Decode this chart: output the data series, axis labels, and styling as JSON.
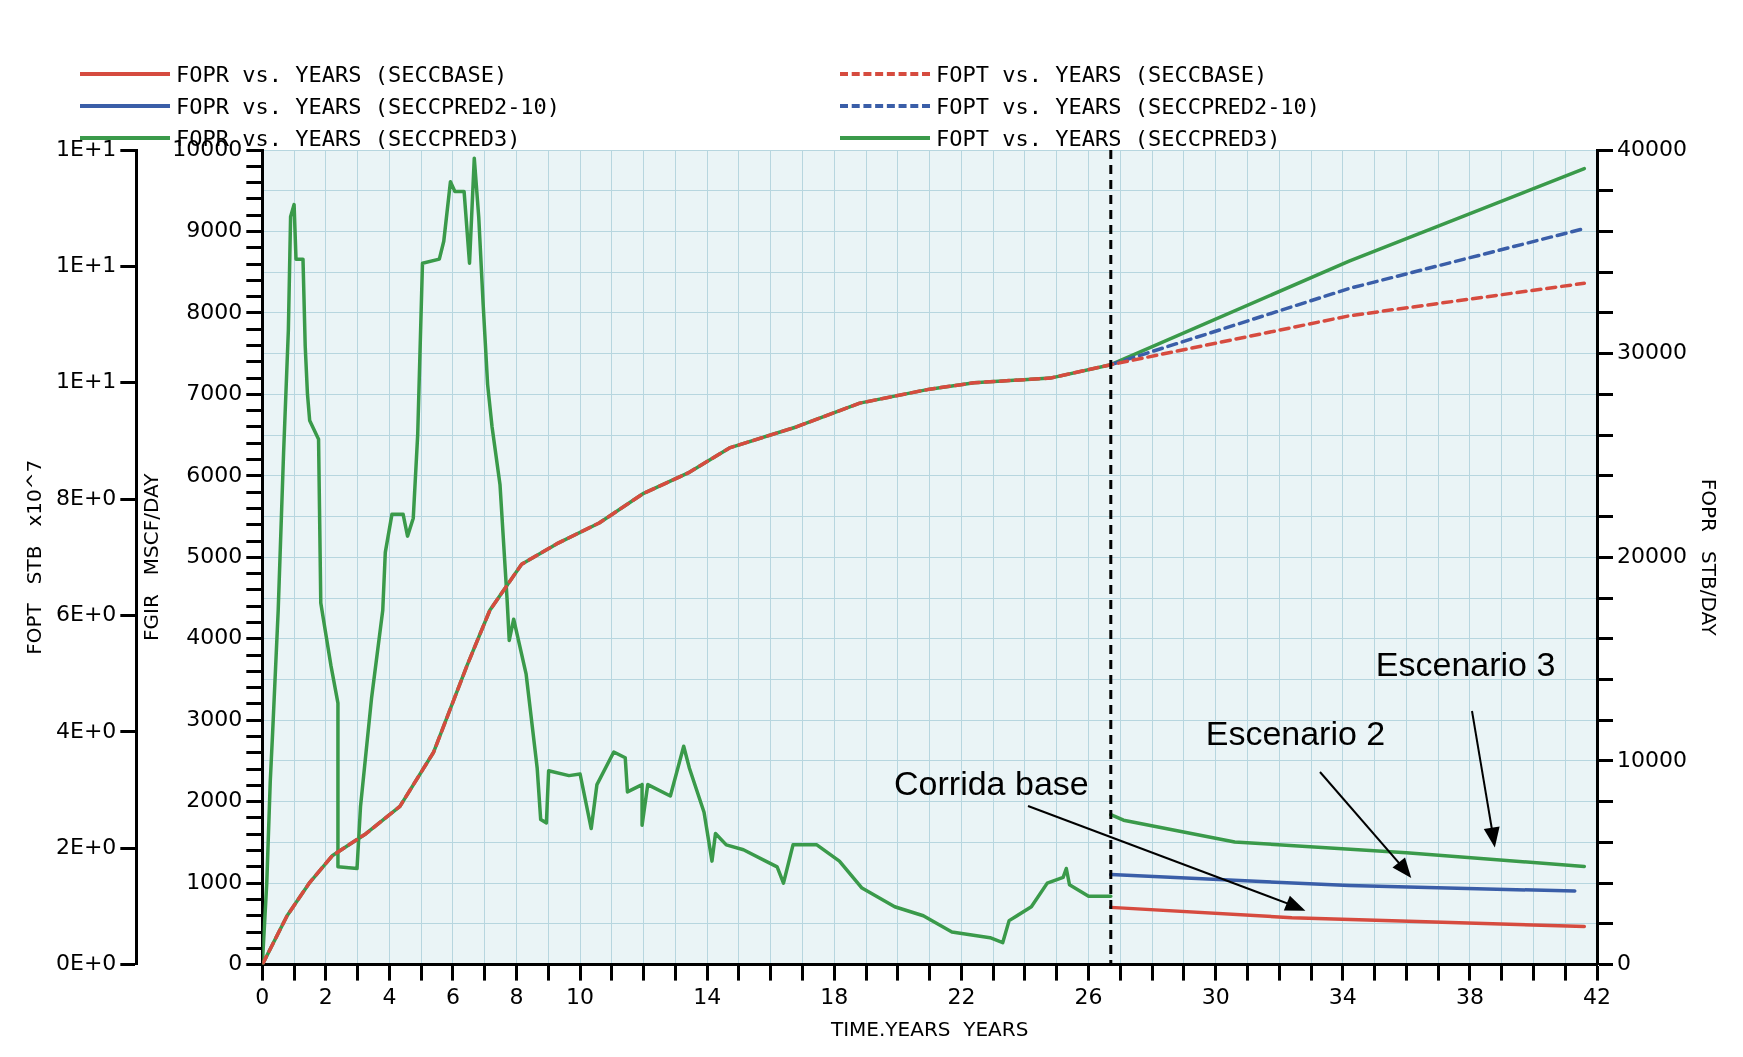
{
  "chart_data": {
    "type": "line",
    "xlabel": "TIME.YEARS  YEARS",
    "ylabel": "FOPR   STB/DAY",
    "y2label": "FGIR   MSCF/DAY",
    "y3label": "FOPT   STB   x10^7",
    "xlim": [
      0,
      42
    ],
    "ylim": [
      0,
      40000
    ],
    "y2lim": [
      0,
      10000
    ],
    "y3lim": [
      0,
      14
    ],
    "xticks": [
      0,
      {
        "value": 1,
        "label": null
      },
      2,
      {
        "value": 3,
        "label": null
      },
      4,
      {
        "value": 5,
        "label": null
      },
      6,
      {
        "value": 7,
        "label": null
      },
      8,
      {
        "value": 9,
        "label": null
      },
      10,
      {
        "value": 11,
        "label": null
      },
      {
        "value": 12,
        "label": null
      },
      {
        "value": 13,
        "label": null
      },
      14,
      {
        "value": 15,
        "label": null
      },
      {
        "value": 16,
        "label": null
      },
      {
        "value": 17,
        "label": null
      },
      18,
      {
        "value": 19,
        "label": null
      },
      {
        "value": 20,
        "label": null
      },
      {
        "value": 21,
        "label": null
      },
      22,
      {
        "value": 23,
        "label": null
      },
      {
        "value": 24,
        "label": null
      },
      {
        "value": 25,
        "label": null
      },
      26,
      {
        "value": 27,
        "label": null
      },
      {
        "value": 28,
        "label": null
      },
      {
        "value": 29,
        "label": null
      },
      30,
      {
        "value": 31,
        "label": null
      },
      {
        "value": 32,
        "label": null
      },
      {
        "value": 33,
        "label": null
      },
      34,
      {
        "value": 35,
        "label": null
      },
      {
        "value": 36,
        "label": null
      },
      {
        "value": 37,
        "label": null
      },
      38,
      {
        "value": 39,
        "label": null
      },
      {
        "value": 40,
        "label": null
      },
      {
        "value": 41,
        "label": null
      },
      42
    ],
    "yticks": [
      0,
      {
        "value": 2000,
        "label": null
      },
      {
        "value": 4000,
        "label": null
      },
      {
        "value": 6000,
        "label": null
      },
      {
        "value": 8000,
        "label": null
      },
      10000,
      {
        "value": 12000,
        "label": null
      },
      {
        "value": 14000,
        "label": null
      },
      {
        "value": 16000,
        "label": null
      },
      {
        "value": 18000,
        "label": null
      },
      20000,
      {
        "value": 22000,
        "label": null
      },
      {
        "value": 24000,
        "label": null
      },
      {
        "value": 26000,
        "label": null
      },
      {
        "value": 28000,
        "label": null
      },
      30000,
      {
        "value": 32000,
        "label": null
      },
      {
        "value": 34000,
        "label": null
      },
      {
        "value": 36000,
        "label": null
      },
      {
        "value": 38000,
        "label": null
      },
      40000
    ],
    "y2ticks": [
      0,
      {
        "value": 200,
        "label": null
      },
      {
        "value": 400,
        "label": null
      },
      {
        "value": 600,
        "label": null
      },
      {
        "value": 800,
        "label": null
      },
      1000,
      {
        "value": 1200,
        "label": null
      },
      {
        "value": 1400,
        "label": null
      },
      {
        "value": 1600,
        "label": null
      },
      {
        "value": 1800,
        "label": null
      },
      2000,
      {
        "value": 2200,
        "label": null
      },
      {
        "value": 2400,
        "label": null
      },
      {
        "value": 2600,
        "label": null
      },
      {
        "value": 2800,
        "label": null
      },
      3000,
      {
        "value": 3200,
        "label": null
      },
      {
        "value": 3400,
        "label": null
      },
      {
        "value": 3600,
        "label": null
      },
      {
        "value": 3800,
        "label": null
      },
      4000,
      {
        "value": 4200,
        "label": null
      },
      {
        "value": 4400,
        "label": null
      },
      {
        "value": 4600,
        "label": null
      },
      {
        "value": 4800,
        "label": null
      },
      5000,
      {
        "value": 5200,
        "label": null
      },
      {
        "value": 5400,
        "label": null
      },
      {
        "value": 5600,
        "label": null
      },
      {
        "value": 5800,
        "label": null
      },
      6000,
      {
        "value": 6200,
        "label": null
      },
      {
        "value": 6400,
        "label": null
      },
      {
        "value": 6600,
        "label": null
      },
      {
        "value": 6800,
        "label": null
      },
      7000,
      {
        "value": 7200,
        "label": null
      },
      {
        "value": 7400,
        "label": null
      },
      {
        "value": 7600,
        "label": null
      },
      {
        "value": 7800,
        "label": null
      },
      8000,
      {
        "value": 8200,
        "label": null
      },
      {
        "value": 8400,
        "label": null
      },
      {
        "value": 8600,
        "label": null
      },
      {
        "value": 8800,
        "label": null
      },
      9000,
      {
        "value": 9200,
        "label": null
      },
      {
        "value": 9400,
        "label": null
      },
      {
        "value": 9600,
        "label": null
      },
      {
        "value": 9800,
        "label": null
      },
      10000
    ],
    "y3ticks": [
      {
        "value": 0,
        "label": "0E+0"
      },
      {
        "value": 2,
        "label": "2E+0"
      },
      {
        "value": 4,
        "label": "4E+0"
      },
      {
        "value": 6,
        "label": "6E+0"
      },
      {
        "value": 8,
        "label": "8E+0"
      },
      {
        "value": 10,
        "label": "1E+1"
      },
      {
        "value": 12,
        "label": "1E+1"
      },
      {
        "value": 14,
        "label": "1E+1"
      }
    ],
    "grid": true,
    "legend": "top",
    "marker": "none",
    "series": [
      {
        "name": "FOPR vs. YEARS (SECCBASE)",
        "color": "#d64b3f",
        "line_style": "solid",
        "x": [
          26.7,
          32.4,
          41.6
        ],
        "values": [
          2810,
          2300,
          1870
        ]
      },
      {
        "name": "FOPR vs. YEARS (SECCPRED2-10)",
        "color": "#3a5ea8",
        "line_style": "solid",
        "x": [
          26.7,
          34.2,
          41.3
        ],
        "values": [
          4420,
          3880,
          3610
        ]
      },
      {
        "name": "FOPR vs. YEARS (SECCPRED3)",
        "color": "#3a9a4a",
        "line_style": "solid",
        "x": [
          26.7,
          27.1,
          30.6,
          36.0,
          41.6
        ],
        "values": [
          7360,
          7090,
          6020,
          5490,
          4820
        ]
      },
      {
        "name": "FOPT vs. YEARS (SECCBASE)",
        "color": "#d64b3f",
        "line_style": "dashed",
        "axis": "y3",
        "x": [
          0,
          0.14,
          0.78,
          1.49,
          2.2,
          3.26,
          4.33,
          5.39,
          6.45,
          7.16,
          8.16,
          9.26,
          10.6,
          12.0,
          13.4,
          14.7,
          16.8,
          18.8,
          21.0,
          22.4,
          24.8,
          26.7,
          34.2,
          41.6
        ],
        "values": [
          0,
          0.15,
          0.84,
          1.41,
          1.87,
          2.25,
          2.72,
          3.65,
          5.15,
          6.09,
          6.88,
          7.23,
          7.59,
          8.1,
          8.45,
          8.88,
          9.24,
          9.65,
          9.89,
          10.0,
          10.08,
          10.31,
          11.15,
          11.71
        ]
      },
      {
        "name": "FOPT vs. YEARS (SECCPRED2-10)",
        "color": "#3a5ea8",
        "line_style": "dashed",
        "axis": "y3",
        "x": [
          26.7,
          34.2,
          41.6
        ],
        "values": [
          10.31,
          11.62,
          12.65
        ]
      },
      {
        "name": "FOPT vs. YEARS (SECCPRED3)",
        "color": "#3a9a4a",
        "line_style": "solid",
        "axis": "y3",
        "x": [
          0,
          0.14,
          0.78,
          1.49,
          2.2,
          3.26,
          4.33,
          5.39,
          6.45,
          7.16,
          8.16,
          9.26,
          10.6,
          12.0,
          13.4,
          14.7,
          16.8,
          18.8,
          21.0,
          22.4,
          24.8,
          26.7,
          34.2,
          41.6
        ],
        "values": [
          0,
          0.15,
          0.84,
          1.41,
          1.87,
          2.25,
          2.72,
          3.65,
          5.15,
          6.09,
          6.88,
          7.23,
          7.59,
          8.1,
          8.45,
          8.88,
          9.24,
          9.65,
          9.89,
          10.0,
          10.08,
          10.31,
          12.09,
          13.68
        ]
      },
      {
        "color": "#3a9a4a",
        "line_style": "solid",
        "axis": "y2",
        "x": [
          0,
          0.14,
          0.25,
          0.32,
          0.5,
          0.67,
          0.82,
          0.89,
          1.0,
          1.06,
          1.28,
          1.35,
          1.42,
          1.49,
          1.77,
          1.84,
          2.16,
          2.38,
          2.38,
          2.98,
          3.09,
          3.44,
          3.79,
          3.87,
          4.08,
          4.43,
          4.57,
          4.75,
          4.89,
          5.04,
          5.57,
          5.71,
          5.92,
          6.06,
          6.35,
          6.52,
          6.67,
          6.81,
          6.95,
          7.09,
          7.23,
          7.48,
          7.7,
          7.77,
          7.91,
          8.3,
          8.65,
          8.76,
          8.94,
          9.01,
          9.65,
          10.0,
          10.35,
          10.53,
          11.06,
          11.42,
          11.49,
          11.95,
          11.95,
          12.13,
          12.84,
          13.26,
          13.44,
          13.9,
          14.15,
          14.26,
          14.6,
          15.14,
          16.2,
          16.4,
          16.7,
          17.45,
          18.16,
          18.87,
          19.9,
          20.8,
          21.7,
          22.9,
          23.3,
          23.5,
          24.2,
          24.7,
          25.2,
          25.3,
          25.4,
          26.0,
          26.7
        ],
        "values": [
          0,
          1000,
          2250,
          2810,
          4350,
          6290,
          7790,
          9180,
          9330,
          8660,
          8660,
          7590,
          7010,
          6680,
          6450,
          4440,
          3670,
          3210,
          1200,
          1180,
          1940,
          3280,
          4350,
          5060,
          5530,
          5530,
          5260,
          5480,
          6510,
          8610,
          8660,
          8880,
          9610,
          9490,
          9490,
          8610,
          9900,
          9180,
          8100,
          7120,
          6600,
          5890,
          4500,
          3980,
          4240,
          3570,
          2410,
          1780,
          1740,
          2380,
          2320,
          2340,
          1670,
          2210,
          2610,
          2540,
          2120,
          2210,
          1710,
          2210,
          2070,
          2680,
          2410,
          1870,
          1270,
          1610,
          1470,
          1410,
          1200,
          1000,
          1470,
          1470,
          1270,
          940,
          710,
          600,
          400,
          330,
          270,
          540,
          710,
          1000,
          1070,
          1180,
          980,
          840,
          840
        ]
      }
    ],
    "ref_lines": [
      {
        "axis": "x",
        "value": 26.7,
        "color": "#000000",
        "line_style": "dashed"
      }
    ],
    "annotations": [
      "Corrida base",
      "Escenario 2",
      "Escenario 3"
    ]
  }
}
